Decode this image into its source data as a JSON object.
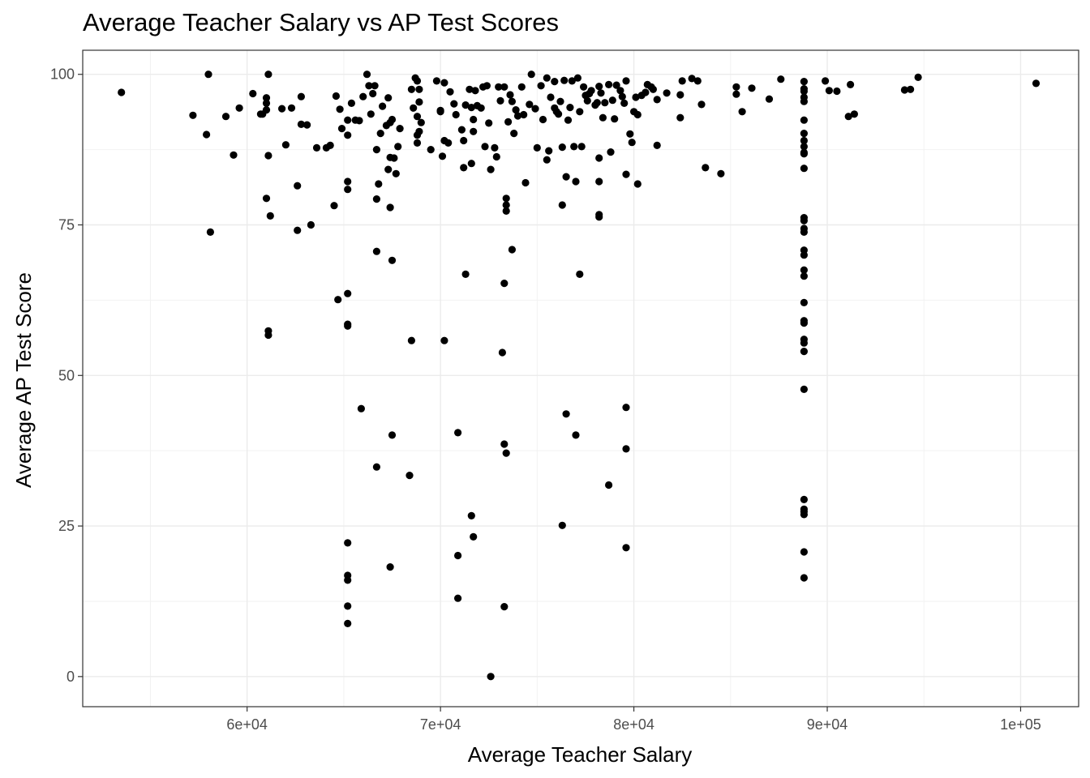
{
  "chart_data": {
    "type": "scatter",
    "title": "Average Teacher Salary vs AP Test Scores",
    "xlabel": "Average Teacher Salary",
    "ylabel": "Average AP Test Score",
    "xlim": [
      51500,
      103000
    ],
    "ylim": [
      -5,
      104
    ],
    "x_ticks": [
      60000,
      70000,
      80000,
      90000,
      100000
    ],
    "x_tick_labels": [
      "6e+04",
      "7e+04",
      "8e+04",
      "9e+04",
      "1e+05"
    ],
    "y_ticks": [
      0,
      25,
      50,
      75,
      100
    ],
    "y_tick_labels": [
      "0",
      "25",
      "50",
      "75",
      "100"
    ],
    "grid": true,
    "theme": "bw",
    "point_color": "#000000",
    "points": [
      [
        53500,
        97
      ],
      [
        57200,
        93.2
      ],
      [
        57900,
        90
      ],
      [
        58000,
        100
      ],
      [
        58100,
        73.8
      ],
      [
        58900,
        93
      ],
      [
        59300,
        86.6
      ],
      [
        59600,
        94.4
      ],
      [
        60300,
        96.8
      ],
      [
        60700,
        93.4
      ],
      [
        60800,
        93.4
      ],
      [
        61000,
        96.1
      ],
      [
        61000,
        95.2
      ],
      [
        61000,
        94.1
      ],
      [
        61000,
        79.4
      ],
      [
        61100,
        100
      ],
      [
        61100,
        86.5
      ],
      [
        61100,
        57.4
      ],
      [
        61100,
        56.7
      ],
      [
        61200,
        76.5
      ],
      [
        61800,
        94.3
      ],
      [
        62000,
        88.3
      ],
      [
        62300,
        94.4
      ],
      [
        62600,
        81.5
      ],
      [
        62600,
        74.1
      ],
      [
        62800,
        91.7
      ],
      [
        62800,
        96.3
      ],
      [
        63100,
        91.6
      ],
      [
        63300,
        75
      ],
      [
        63600,
        87.8
      ],
      [
        64100,
        87.8
      ],
      [
        64300,
        88.2
      ],
      [
        64500,
        78.2
      ],
      [
        64600,
        96.4
      ],
      [
        64700,
        62.6
      ],
      [
        64800,
        94.2
      ],
      [
        64900,
        91
      ],
      [
        65200,
        92.4
      ],
      [
        65200,
        89.9
      ],
      [
        65200,
        82.2
      ],
      [
        65200,
        80.9
      ],
      [
        65200,
        63.6
      ],
      [
        65200,
        58.5
      ],
      [
        65200,
        58.2
      ],
      [
        65200,
        22.2
      ],
      [
        65200,
        16.8
      ],
      [
        65200,
        16
      ],
      [
        65200,
        11.7
      ],
      [
        65200,
        8.8
      ],
      [
        65400,
        95.2
      ],
      [
        65600,
        92.4
      ],
      [
        65800,
        92.3
      ],
      [
        65900,
        44.5
      ],
      [
        66000,
        96.3
      ],
      [
        66200,
        100
      ],
      [
        66300,
        98.1
      ],
      [
        66400,
        93.4
      ],
      [
        66500,
        96.8
      ],
      [
        66600,
        98.1
      ],
      [
        66700,
        87.5
      ],
      [
        66700,
        79.3
      ],
      [
        66700,
        70.6
      ],
      [
        66700,
        34.8
      ],
      [
        66800,
        81.8
      ],
      [
        66900,
        90.2
      ],
      [
        67000,
        94.7
      ],
      [
        67200,
        91.5
      ],
      [
        67300,
        96.1
      ],
      [
        67300,
        84.2
      ],
      [
        67400,
        92
      ],
      [
        67400,
        86.2
      ],
      [
        67400,
        77.9
      ],
      [
        67400,
        18.2
      ],
      [
        67500,
        92.5
      ],
      [
        67500,
        69.1
      ],
      [
        67500,
        40.1
      ],
      [
        67600,
        86.1
      ],
      [
        67700,
        83.5
      ],
      [
        67800,
        88
      ],
      [
        67900,
        91
      ],
      [
        68400,
        33.4
      ],
      [
        68500,
        97.5
      ],
      [
        68500,
        55.8
      ],
      [
        68600,
        94.4
      ],
      [
        68700,
        99.4
      ],
      [
        68800,
        98.9
      ],
      [
        68800,
        93
      ],
      [
        68800,
        89.9
      ],
      [
        68800,
        88.6
      ],
      [
        68900,
        97.5
      ],
      [
        68900,
        95.4
      ],
      [
        68900,
        90.5
      ],
      [
        69000,
        92
      ],
      [
        69500,
        87.5
      ],
      [
        69800,
        98.9
      ],
      [
        70000,
        94
      ],
      [
        70000,
        93.8
      ],
      [
        70100,
        86.4
      ],
      [
        70200,
        98.6
      ],
      [
        70200,
        89
      ],
      [
        70200,
        55.8
      ],
      [
        70400,
        88.6
      ],
      [
        70500,
        97.1
      ],
      [
        70700,
        95.1
      ],
      [
        70800,
        93.3
      ],
      [
        70900,
        40.5
      ],
      [
        70900,
        20.1
      ],
      [
        70900,
        13
      ],
      [
        71100,
        90.8
      ],
      [
        71200,
        89
      ],
      [
        71200,
        84.5
      ],
      [
        71300,
        94.9
      ],
      [
        71300,
        66.8
      ],
      [
        71500,
        97.5
      ],
      [
        71600,
        94.5
      ],
      [
        71600,
        85.2
      ],
      [
        71600,
        26.7
      ],
      [
        71700,
        92.5
      ],
      [
        71700,
        90.5
      ],
      [
        71700,
        23.2
      ],
      [
        71800,
        97.3
      ],
      [
        71900,
        94.8
      ],
      [
        72100,
        94.4
      ],
      [
        72200,
        97.9
      ],
      [
        72300,
        88
      ],
      [
        72400,
        98.1
      ],
      [
        72500,
        91.9
      ],
      [
        72600,
        84.2
      ],
      [
        72600,
        0
      ],
      [
        72800,
        87.8
      ],
      [
        72900,
        86.3
      ],
      [
        73000,
        97.9
      ],
      [
        73100,
        95.6
      ],
      [
        73200,
        53.8
      ],
      [
        73300,
        97.9
      ],
      [
        73300,
        65.3
      ],
      [
        73300,
        38.6
      ],
      [
        73300,
        11.6
      ],
      [
        73400,
        79.4
      ],
      [
        73400,
        78.3
      ],
      [
        73400,
        77.3
      ],
      [
        73400,
        37.1
      ],
      [
        73500,
        92.1
      ],
      [
        73600,
        96.6
      ],
      [
        73700,
        95.5
      ],
      [
        73700,
        70.9
      ],
      [
        73800,
        90.2
      ],
      [
        73900,
        94.1
      ],
      [
        74000,
        93.1
      ],
      [
        74200,
        97.9
      ],
      [
        74300,
        93.3
      ],
      [
        74400,
        82
      ],
      [
        74600,
        95
      ],
      [
        74700,
        100
      ],
      [
        74900,
        94.3
      ],
      [
        75000,
        87.8
      ],
      [
        75200,
        98.1
      ],
      [
        75300,
        92.5
      ],
      [
        75500,
        99.4
      ],
      [
        75500,
        85.8
      ],
      [
        75600,
        87.3
      ],
      [
        75700,
        96.2
      ],
      [
        75900,
        94.4
      ],
      [
        75900,
        98.8
      ],
      [
        76000,
        93.8
      ],
      [
        76100,
        93.4
      ],
      [
        76200,
        95.5
      ],
      [
        76300,
        87.9
      ],
      [
        76300,
        78.3
      ],
      [
        76300,
        25.1
      ],
      [
        76400,
        99
      ],
      [
        76500,
        83
      ],
      [
        76500,
        43.6
      ],
      [
        76600,
        92.4
      ],
      [
        76700,
        94.5
      ],
      [
        76800,
        98.9
      ],
      [
        76900,
        88
      ],
      [
        77000,
        82.2
      ],
      [
        77000,
        40.1
      ],
      [
        77100,
        99.4
      ],
      [
        77200,
        93.8
      ],
      [
        77200,
        66.8
      ],
      [
        77300,
        88
      ],
      [
        77400,
        97.9
      ],
      [
        77500,
        96.5
      ],
      [
        77600,
        95.6
      ],
      [
        77700,
        96.8
      ],
      [
        77800,
        97.3
      ],
      [
        78000,
        94.9
      ],
      [
        78100,
        95.3
      ],
      [
        78200,
        98
      ],
      [
        78200,
        86.1
      ],
      [
        78200,
        82.2
      ],
      [
        78200,
        76.7
      ],
      [
        78200,
        76.3
      ],
      [
        78300,
        96.9
      ],
      [
        78400,
        92.8
      ],
      [
        78500,
        95.3
      ],
      [
        78700,
        98.3
      ],
      [
        78700,
        31.8
      ],
      [
        78800,
        87.1
      ],
      [
        78900,
        95.7
      ],
      [
        79000,
        92.6
      ],
      [
        79100,
        98.2
      ],
      [
        79300,
        97.3
      ],
      [
        79400,
        96.3
      ],
      [
        79500,
        95.2
      ],
      [
        79600,
        98.9
      ],
      [
        79600,
        83.4
      ],
      [
        79600,
        37.8
      ],
      [
        79600,
        21.4
      ],
      [
        79600,
        44.7
      ],
      [
        79800,
        90.1
      ],
      [
        79900,
        88.7
      ],
      [
        80000,
        93.8
      ],
      [
        80100,
        96.2
      ],
      [
        80200,
        93.3
      ],
      [
        80200,
        81.8
      ],
      [
        80400,
        96.5
      ],
      [
        80600,
        97
      ],
      [
        80700,
        98.3
      ],
      [
        80900,
        97.9
      ],
      [
        81000,
        97.5
      ],
      [
        81200,
        95.8
      ],
      [
        81200,
        88.2
      ],
      [
        81700,
        96.9
      ],
      [
        82400,
        96.6
      ],
      [
        82400,
        92.8
      ],
      [
        82500,
        98.9
      ],
      [
        83000,
        99.3
      ],
      [
        83300,
        98.9
      ],
      [
        83500,
        95
      ],
      [
        83700,
        84.5
      ],
      [
        84500,
        83.5
      ],
      [
        85300,
        96.7
      ],
      [
        85300,
        97.9
      ],
      [
        85600,
        93.8
      ],
      [
        86100,
        97.7
      ],
      [
        87000,
        95.9
      ],
      [
        87600,
        99.2
      ],
      [
        88800,
        98.8
      ],
      [
        88800,
        97.6
      ],
      [
        88800,
        97.2
      ],
      [
        88800,
        96.2
      ],
      [
        88800,
        95.5
      ],
      [
        88800,
        92.4
      ],
      [
        88800,
        90.2
      ],
      [
        88800,
        89
      ],
      [
        88800,
        88
      ],
      [
        88800,
        87
      ],
      [
        88800,
        86.8
      ],
      [
        88800,
        84.4
      ],
      [
        88800,
        76.2
      ],
      [
        88800,
        75.7
      ],
      [
        88800,
        74.4
      ],
      [
        88800,
        73.8
      ],
      [
        88800,
        70.8
      ],
      [
        88800,
        70
      ],
      [
        88800,
        67.5
      ],
      [
        88800,
        66.5
      ],
      [
        88800,
        62.1
      ],
      [
        88800,
        59.1
      ],
      [
        88800,
        58.7
      ],
      [
        88800,
        56
      ],
      [
        88800,
        55.4
      ],
      [
        88800,
        54
      ],
      [
        88800,
        47.7
      ],
      [
        88800,
        29.4
      ],
      [
        88800,
        27.8
      ],
      [
        88800,
        27.4
      ],
      [
        88800,
        26.9
      ],
      [
        88800,
        20.7
      ],
      [
        88800,
        16.4
      ],
      [
        89900,
        98.9
      ],
      [
        90100,
        97.3
      ],
      [
        90500,
        97.2
      ],
      [
        91100,
        93
      ],
      [
        91200,
        98.3
      ],
      [
        91400,
        93.4
      ],
      [
        94000,
        97.4
      ],
      [
        94300,
        97.5
      ],
      [
        94700,
        99.5
      ],
      [
        100800,
        98.5
      ]
    ]
  }
}
